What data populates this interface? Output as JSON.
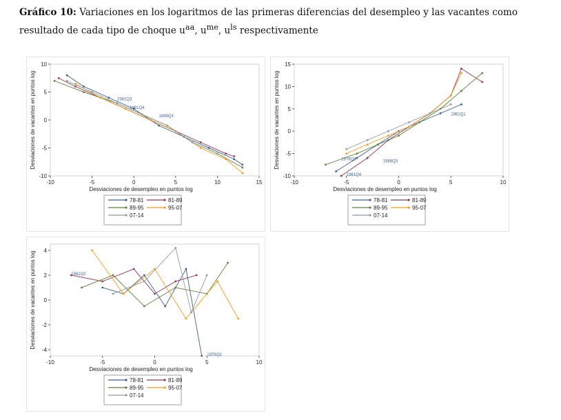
{
  "title": {
    "label": "Gráfico 10:",
    "text_line1": "Variaciones en los logaritmos de las primeras diferencias del desempleo y las vacantes como",
    "text_line2": "resultado de cada tipo de choque u",
    "sup1": "aa",
    "sep1": ", u",
    "sup2": "me",
    "sep2": ", u",
    "sup3": "ls",
    "tail": " respectivamente"
  },
  "colors": {
    "78-81": "#3b5f8c",
    "81-89": "#8c3a50",
    "89-95": "#5e7f3a",
    "95-07": "#f39a1d",
    "07-14": "#8c9c9a"
  },
  "legend": [
    {
      "label": "78-81",
      "color_key": "78-81"
    },
    {
      "label": "81-89",
      "color_key": "81-89"
    },
    {
      "label": "89-95",
      "color_key": "89-95"
    },
    {
      "label": "95-07",
      "color_key": "95-07"
    },
    {
      "label": "07-14",
      "color_key": "07-14"
    }
  ],
  "chart_data": [
    {
      "type": "line",
      "xlabel": "Desviaciones de desempleo en puntos log",
      "ylabel": "Desviaciones de vacantes en puntos log",
      "xlim": [
        -10,
        15
      ],
      "ylim": [
        -10,
        10
      ],
      "xticks": [
        -10,
        -5,
        0,
        5,
        10,
        15
      ],
      "yticks": [
        -10,
        -5,
        0,
        5,
        10
      ],
      "annotations": [
        {
          "text": "1981Q3",
          "x": -2,
          "y": 3.5
        },
        {
          "text": "1981Q4",
          "x": -0.5,
          "y": 2
        },
        {
          "text": "1989Q3",
          "x": 3,
          "y": 0.5
        }
      ],
      "series": [
        {
          "name": "78-81",
          "x": [
            -8,
            -6,
            -3,
            0,
            3,
            6,
            9,
            12,
            13
          ],
          "y": [
            8,
            6,
            4,
            2,
            -1,
            -3,
            -5,
            -7,
            -8
          ]
        },
        {
          "name": "81-89",
          "x": [
            -9,
            -7,
            -4,
            -1,
            2,
            5,
            8,
            11,
            12
          ],
          "y": [
            7.5,
            6,
            4,
            2,
            0,
            -2,
            -4,
            -6,
            -6.5
          ]
        },
        {
          "name": "89-95",
          "x": [
            -9.5,
            -6,
            -2,
            1,
            4,
            7,
            10,
            13
          ],
          "y": [
            7,
            5,
            3,
            1,
            -1,
            -4,
            -6,
            -8.5
          ]
        },
        {
          "name": "95-07",
          "x": [
            -7,
            -4,
            -1,
            2,
            5,
            8,
            11,
            13
          ],
          "y": [
            6.5,
            4,
            2,
            0,
            -2,
            -5,
            -7,
            -9.5
          ]
        },
        {
          "name": "07-14",
          "x": [
            -8,
            -5,
            -2,
            1,
            4,
            7,
            10
          ],
          "y": [
            7,
            5,
            3,
            1,
            -1,
            -4,
            -6
          ]
        }
      ]
    },
    {
      "type": "line",
      "xlabel": "Desviaciones de desempleo en puntos log",
      "ylabel": "Desviaciones de vacantes en puntos log",
      "xlim": [
        -10,
        10
      ],
      "ylim": [
        -10,
        15
      ],
      "xticks": [
        -10,
        -5,
        0,
        5,
        10
      ],
      "yticks": [
        -10,
        -5,
        0,
        5,
        10,
        15
      ],
      "annotations": [
        {
          "text": "1981Q4",
          "x": -5,
          "y": -10
        },
        {
          "text": "1989Q3",
          "x": -1.5,
          "y": -7
        },
        {
          "text": "1981Q1",
          "x": 5,
          "y": 3.5
        },
        {
          "text": "1978Q3",
          "x": -5.5,
          "y": -6.5
        }
      ],
      "series": [
        {
          "name": "78-81",
          "x": [
            -6,
            -4,
            -2,
            0,
            2,
            4,
            6
          ],
          "y": [
            -9,
            -6,
            -3,
            0,
            2,
            4,
            6
          ]
        },
        {
          "name": "81-89",
          "x": [
            -5.5,
            -3,
            -1,
            1,
            3,
            5,
            6,
            8
          ],
          "y": [
            -10,
            -6,
            -2,
            1,
            4,
            8,
            14,
            11
          ]
        },
        {
          "name": "89-95",
          "x": [
            -7,
            -4,
            -2,
            0,
            2,
            4,
            6,
            8
          ],
          "y": [
            -7.5,
            -5,
            -3,
            -1,
            2,
            5,
            9,
            13
          ]
        },
        {
          "name": "95-07",
          "x": [
            -5,
            -3,
            -1,
            1,
            3,
            5,
            6
          ],
          "y": [
            -5,
            -3,
            -1,
            1,
            4,
            8,
            13
          ]
        },
        {
          "name": "07-14",
          "x": [
            -5,
            -3,
            -1,
            1,
            3,
            5
          ],
          "y": [
            -4,
            -2,
            0,
            2,
            4,
            6
          ]
        }
      ]
    },
    {
      "type": "line",
      "xlabel": "Desviaciones de desempleo en puntos log",
      "ylabel": "Desviaciones de vacantes en puntos log",
      "xlim": [
        -10,
        10
      ],
      "ylim": [
        -4.5,
        4.5
      ],
      "xticks": [
        -10,
        -5,
        0,
        5,
        10
      ],
      "yticks": [
        -4,
        -2,
        0,
        2,
        4
      ],
      "annotations": [
        {
          "text": "1981Q2",
          "x": -8,
          "y": 2
        },
        {
          "text": "1978Q3",
          "x": 5,
          "y": -4.5
        }
      ],
      "series": [
        {
          "name": "78-81",
          "x": [
            -5,
            -3,
            -1,
            1,
            3,
            4.5
          ],
          "y": [
            1,
            0.5,
            2,
            -0.5,
            2.5,
            -4.5
          ]
        },
        {
          "name": "81-89",
          "x": [
            -8,
            -5,
            -2,
            0,
            2,
            4
          ],
          "y": [
            2,
            1.5,
            2.5,
            0.5,
            1.5,
            2
          ]
        },
        {
          "name": "89-95",
          "x": [
            -7,
            -4,
            -1,
            2,
            5,
            7
          ],
          "y": [
            1,
            2,
            -0.5,
            1,
            0.5,
            3
          ]
        },
        {
          "name": "95-07",
          "x": [
            -6,
            -3,
            0,
            3,
            6,
            8
          ],
          "y": [
            4,
            0.5,
            2.5,
            -1.5,
            1.5,
            -1.5
          ]
        },
        {
          "name": "07-14",
          "x": [
            -4,
            -1,
            2,
            3.5,
            5
          ],
          "y": [
            0.5,
            1.5,
            4.2,
            -1,
            2
          ]
        }
      ]
    }
  ]
}
